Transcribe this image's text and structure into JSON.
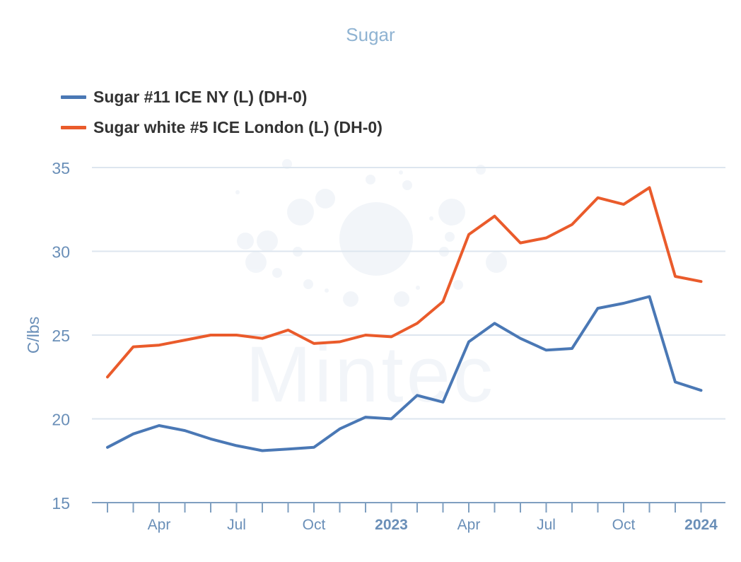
{
  "chart_data": {
    "type": "line",
    "title": "Sugar",
    "ylabel": "C/lbs",
    "xlabel": "",
    "ylim": [
      15,
      35
    ],
    "yticks": [
      15,
      20,
      25,
      30,
      35
    ],
    "grid": true,
    "legend_position": "top-left",
    "watermark": "Mintec",
    "x": [
      "2022-02",
      "2022-03",
      "2022-04",
      "2022-05",
      "2022-06",
      "2022-07",
      "2022-08",
      "2022-09",
      "2022-10",
      "2022-11",
      "2022-12",
      "2023-01",
      "2023-02",
      "2023-03",
      "2023-04",
      "2023-05",
      "2023-06",
      "2023-07",
      "2023-08",
      "2023-09",
      "2023-10",
      "2023-11",
      "2023-12",
      "2024-01"
    ],
    "x_tick_labels": [
      {
        "at": "2022-04",
        "label": "Apr",
        "bold": false
      },
      {
        "at": "2022-07",
        "label": "Jul",
        "bold": false
      },
      {
        "at": "2022-10",
        "label": "Oct",
        "bold": false
      },
      {
        "at": "2023-01",
        "label": "2023",
        "bold": true
      },
      {
        "at": "2023-04",
        "label": "Apr",
        "bold": false
      },
      {
        "at": "2023-07",
        "label": "Jul",
        "bold": false
      },
      {
        "at": "2023-10",
        "label": "Oct",
        "bold": false
      },
      {
        "at": "2024-01",
        "label": "2024",
        "bold": true
      }
    ],
    "series": [
      {
        "name": "Sugar #11 ICE NY (L) (DH-0)",
        "color": "#4a78b5",
        "values": [
          18.3,
          19.1,
          19.6,
          19.3,
          18.8,
          18.4,
          18.1,
          18.2,
          18.3,
          19.4,
          20.1,
          20.0,
          21.4,
          21.0,
          24.6,
          25.7,
          24.8,
          24.1,
          24.2,
          26.6,
          26.9,
          27.3,
          22.2,
          21.7
        ]
      },
      {
        "name": "Sugar white #5 ICE London (L) (DH-0)",
        "color": "#ea5b2b",
        "values": [
          22.5,
          24.3,
          24.4,
          24.7,
          25.0,
          25.0,
          24.8,
          25.3,
          24.5,
          24.6,
          25.0,
          24.9,
          25.7,
          27.0,
          31.0,
          32.1,
          30.5,
          30.8,
          31.6,
          33.2,
          32.8,
          33.8,
          28.5,
          28.2
        ]
      }
    ]
  }
}
